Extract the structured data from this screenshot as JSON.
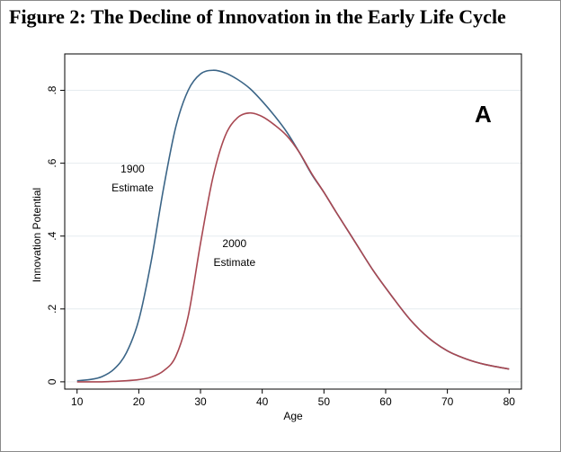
{
  "figure_title": "Figure 2:  The Decline of Innovation in the Early Life Cycle",
  "chart_data": {
    "type": "line",
    "title": "Figure 2:  The Decline of Innovation in the Early Life Cycle",
    "panel_label": "A",
    "xlabel": "Age",
    "ylabel": "Innovation Potential",
    "xlim": [
      8,
      82
    ],
    "ylim": [
      -0.02,
      0.9
    ],
    "xticks": [
      10,
      20,
      30,
      40,
      50,
      60,
      70,
      80
    ],
    "xtick_labels": [
      "10",
      "20",
      "30",
      "40",
      "50",
      "60",
      "70",
      "80"
    ],
    "yticks": [
      0,
      0.2,
      0.4,
      0.6,
      0.8
    ],
    "ytick_labels": [
      "0",
      ".2",
      ".4",
      ".6",
      ".8"
    ],
    "grid": true,
    "series": [
      {
        "name": "1900 Estimate",
        "label_lines": [
          "1900",
          "Estimate"
        ],
        "label_anchor": {
          "x": 19,
          "y": 0.575
        },
        "color": "#3b6587",
        "x": [
          10,
          12,
          14,
          16,
          18,
          20,
          22,
          24,
          26,
          28,
          30,
          32,
          34,
          36,
          38,
          40,
          42,
          44,
          46,
          48,
          50,
          52,
          55,
          58,
          61,
          64,
          67,
          70,
          73,
          76,
          80
        ],
        "y": [
          0.003,
          0.006,
          0.014,
          0.035,
          0.08,
          0.17,
          0.33,
          0.53,
          0.7,
          0.8,
          0.845,
          0.855,
          0.848,
          0.83,
          0.805,
          0.77,
          0.73,
          0.685,
          0.63,
          0.57,
          0.52,
          0.465,
          0.385,
          0.305,
          0.235,
          0.17,
          0.12,
          0.085,
          0.063,
          0.048,
          0.035
        ]
      },
      {
        "name": "2000 Estimate",
        "label_lines": [
          "2000",
          "Estimate"
        ],
        "label_anchor": {
          "x": 35.5,
          "y": 0.37
        },
        "color": "#a84852",
        "x": [
          10,
          14,
          18,
          20,
          22,
          24,
          26,
          28,
          30,
          32,
          34,
          36,
          38,
          40,
          42,
          44,
          46,
          48,
          50,
          52,
          55,
          58,
          61,
          64,
          67,
          70,
          73,
          76,
          80
        ],
        "y": [
          0.0,
          0.0,
          0.003,
          0.006,
          0.013,
          0.03,
          0.07,
          0.18,
          0.38,
          0.56,
          0.675,
          0.725,
          0.738,
          0.728,
          0.705,
          0.675,
          0.63,
          0.572,
          0.52,
          0.465,
          0.385,
          0.305,
          0.235,
          0.17,
          0.12,
          0.085,
          0.063,
          0.048,
          0.035
        ]
      }
    ]
  }
}
